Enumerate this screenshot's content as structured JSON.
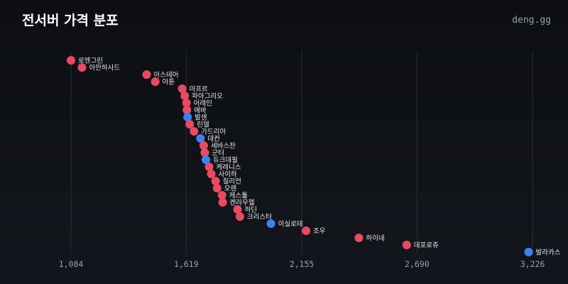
{
  "header": {
    "title": "전서버 가격 분포",
    "brand": "deng.gg"
  },
  "colors": {
    "default": "#e84a5f",
    "highlight": "#3b82f6",
    "grid": "#2a2e36"
  },
  "chart_data": {
    "type": "scatter",
    "title": "전서버 가격 분포",
    "xlabel": "",
    "ylabel": "",
    "x_ticks": [
      1084,
      1619,
      2155,
      2690,
      3226
    ],
    "x_tick_labels": [
      "1,084",
      "1,619",
      "2,155",
      "2,690",
      "3,226"
    ],
    "xlim": [
      1084,
      3226
    ],
    "grid": "vertical",
    "legend": "none",
    "points": [
      {
        "name": "로엔그린",
        "value": 1084,
        "highlight": false
      },
      {
        "name": "아만하사드",
        "value": 1135,
        "highlight": false
      },
      {
        "name": "아스테어",
        "value": 1435,
        "highlight": false
      },
      {
        "name": "아툰",
        "value": 1475,
        "highlight": false
      },
      {
        "name": "마프르",
        "value": 1600,
        "highlight": false
      },
      {
        "name": "파아그리오",
        "value": 1612,
        "highlight": false
      },
      {
        "name": "어레인",
        "value": 1620,
        "highlight": false
      },
      {
        "name": "에바",
        "value": 1622,
        "highlight": false
      },
      {
        "name": "발센",
        "value": 1625,
        "highlight": true
      },
      {
        "name": "린델",
        "value": 1635,
        "highlight": false
      },
      {
        "name": "가드리아",
        "value": 1655,
        "highlight": false
      },
      {
        "name": "데컨",
        "value": 1685,
        "highlight": true
      },
      {
        "name": "세바스찬",
        "value": 1700,
        "highlight": false
      },
      {
        "name": "군터",
        "value": 1705,
        "highlight": false
      },
      {
        "name": "듀크데필",
        "value": 1710,
        "highlight": true
      },
      {
        "name": "케레니스",
        "value": 1725,
        "highlight": false
      },
      {
        "name": "사이하",
        "value": 1735,
        "highlight": false
      },
      {
        "name": "질리언",
        "value": 1755,
        "highlight": false
      },
      {
        "name": "오렌",
        "value": 1762,
        "highlight": false
      },
      {
        "name": "캐스톨",
        "value": 1785,
        "highlight": false
      },
      {
        "name": "켄라우헬",
        "value": 1788,
        "highlight": false
      },
      {
        "name": "하딘",
        "value": 1857,
        "highlight": false
      },
      {
        "name": "크리스터",
        "value": 1868,
        "highlight": false
      },
      {
        "name": "이실로테",
        "value": 2012,
        "highlight": true
      },
      {
        "name": "조우",
        "value": 2175,
        "highlight": false
      },
      {
        "name": "하이네",
        "value": 2420,
        "highlight": false
      },
      {
        "name": "데포로쥬",
        "value": 2642,
        "highlight": false
      },
      {
        "name": "발라카스",
        "value": 3208,
        "highlight": true
      }
    ]
  }
}
